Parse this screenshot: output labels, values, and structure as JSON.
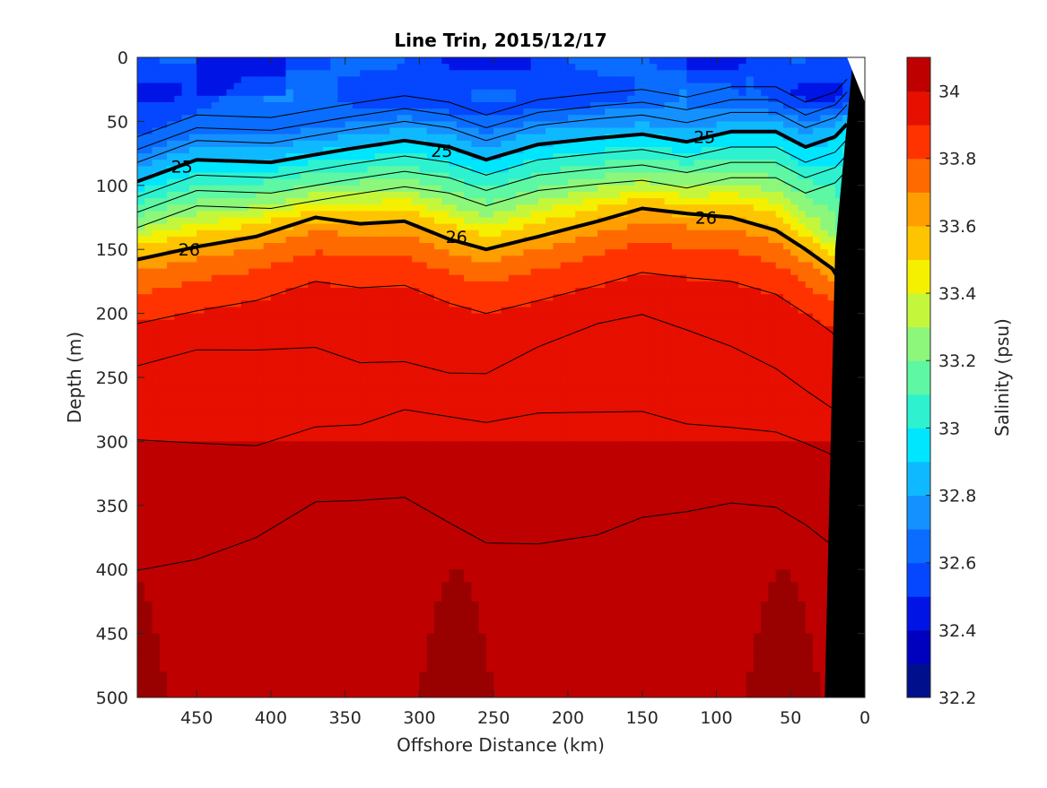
{
  "chart_data": {
    "type": "heatmap",
    "title": "Line Trin, 2015/12/17",
    "xlabel": "Offshore Distance (km)",
    "ylabel": "Depth (m)",
    "colorbar_label": "Salinity (psu)",
    "xlim": [
      490,
      0
    ],
    "ylim": [
      0,
      500
    ],
    "x_direction": "reversed",
    "y_direction": "reversed (depth increases downward)",
    "x_ticks": [
      450,
      400,
      350,
      300,
      250,
      200,
      150,
      100,
      50,
      0
    ],
    "y_ticks": [
      0,
      50,
      100,
      150,
      200,
      250,
      300,
      350,
      400,
      450,
      500
    ],
    "colorbar_range": [
      32.2,
      34.1
    ],
    "colorbar_ticks": [
      32.2,
      32.4,
      32.6,
      32.8,
      33,
      33.2,
      33.4,
      33.6,
      33.8,
      34
    ],
    "colorbar_levels": [
      32.2,
      32.3,
      32.4,
      32.5,
      32.6,
      32.7,
      32.8,
      32.9,
      33.0,
      33.1,
      33.2,
      33.3,
      33.4,
      33.5,
      33.6,
      33.7,
      33.8,
      33.9,
      34.0,
      34.1
    ],
    "colorbar_colors": [
      "#000f8c",
      "#0000bf",
      "#0014e6",
      "#0546ff",
      "#0a6dff",
      "#1491ff",
      "#0fb9ff",
      "#00e6ff",
      "#2ef2cf",
      "#5ef7a3",
      "#8cf77a",
      "#c4f73c",
      "#f5f000",
      "#ffc400",
      "#ff9e00",
      "#ff6a00",
      "#ff3300",
      "#e60f00",
      "#bf0000",
      "#990000"
    ],
    "salinity_profile": {
      "depth": [
        0,
        40,
        55,
        70,
        85,
        100,
        115,
        130,
        150,
        175,
        200,
        250,
        300,
        400,
        500
      ],
      "salinity": [
        32.55,
        32.6,
        32.7,
        32.85,
        33.0,
        33.15,
        33.3,
        33.5,
        33.7,
        33.85,
        33.93,
        33.97,
        34.0,
        34.02,
        34.03
      ]
    },
    "fields": {
      "base_salinity_near_surface": 32.55,
      "deep_salinity_max_region": 34.05
    },
    "density_contours": [
      {
        "label": "25",
        "style": "bold",
        "depth_by_distance": {
          "x": [
            490,
            450,
            400,
            350,
            310,
            280,
            255,
            220,
            180,
            150,
            120,
            90,
            60,
            40,
            20,
            12
          ],
          "y": [
            97,
            80,
            82,
            72,
            65,
            70,
            80,
            68,
            63,
            60,
            66,
            58,
            58,
            70,
            62,
            52
          ]
        }
      },
      {
        "label": "26",
        "style": "bold",
        "depth_by_distance": {
          "x": [
            490,
            450,
            410,
            370,
            340,
            310,
            280,
            255,
            220,
            180,
            150,
            120,
            90,
            60,
            40,
            22,
            15
          ],
          "y": [
            158,
            148,
            140,
            125,
            130,
            128,
            142,
            150,
            140,
            128,
            118,
            122,
            125,
            135,
            150,
            165,
            178
          ]
        }
      }
    ],
    "contour_labels": [
      {
        "text": "25",
        "x": 460,
        "y": 85
      },
      {
        "text": "25",
        "x": 285,
        "y": 73
      },
      {
        "text": "25",
        "x": 108,
        "y": 62
      },
      {
        "text": "26",
        "x": 455,
        "y": 150
      },
      {
        "text": "26",
        "x": 275,
        "y": 140
      },
      {
        "text": "26",
        "x": 107,
        "y": 125
      }
    ],
    "seafloor": {
      "x": [
        0,
        8,
        20,
        27,
        0
      ],
      "y": [
        0,
        0,
        150,
        500,
        500
      ]
    }
  }
}
